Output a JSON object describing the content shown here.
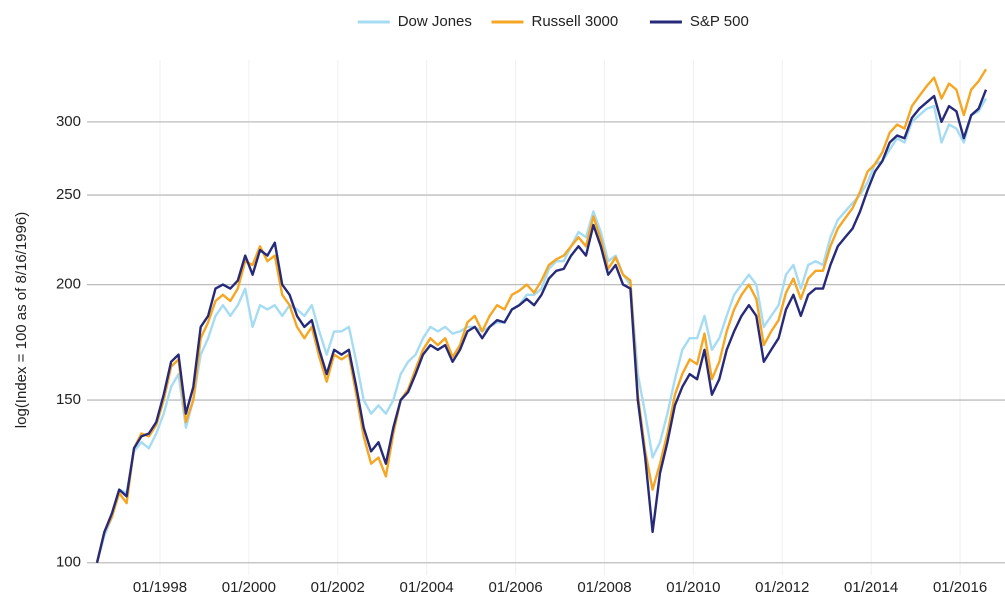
{
  "chart_data": {
    "type": "line",
    "y_label": "log(Index = 100 as of 8/16/1996)",
    "log_scale": true,
    "grid": true,
    "legend": "top",
    "xlim": [
      "1996-08",
      "2016-08"
    ],
    "xticks": [
      {
        "value": "1998-01",
        "label": "01/1998"
      },
      {
        "value": "2000-01",
        "label": "01/2000"
      },
      {
        "value": "2002-01",
        "label": "01/2002"
      },
      {
        "value": "2004-01",
        "label": "01/2004"
      },
      {
        "value": "2006-01",
        "label": "01/2006"
      },
      {
        "value": "2008-01",
        "label": "01/2008"
      },
      {
        "value": "2010-01",
        "label": "01/2010"
      },
      {
        "value": "2012-01",
        "label": "01/2012"
      },
      {
        "value": "2014-01",
        "label": "01/2014"
      },
      {
        "value": "2016-01",
        "label": "01/2016"
      }
    ],
    "ylim": [
      97,
      350
    ],
    "yticks": [
      100,
      150,
      200,
      250,
      300
    ],
    "x": [
      "1996-08",
      "1996-10",
      "1996-12",
      "1997-02",
      "1997-04",
      "1997-06",
      "1997-08",
      "1997-10",
      "1997-12",
      "1998-02",
      "1998-04",
      "1998-06",
      "1998-08",
      "1998-10",
      "1998-12",
      "1999-02",
      "1999-04",
      "1999-06",
      "1999-08",
      "1999-10",
      "1999-12",
      "2000-02",
      "2000-04",
      "2000-06",
      "2000-08",
      "2000-10",
      "2000-12",
      "2001-02",
      "2001-04",
      "2001-06",
      "2001-08",
      "2001-10",
      "2001-12",
      "2002-02",
      "2002-04",
      "2002-06",
      "2002-08",
      "2002-10",
      "2002-12",
      "2003-02",
      "2003-04",
      "2003-06",
      "2003-08",
      "2003-10",
      "2003-12",
      "2004-02",
      "2004-04",
      "2004-06",
      "2004-08",
      "2004-10",
      "2004-12",
      "2005-02",
      "2005-04",
      "2005-06",
      "2005-08",
      "2005-10",
      "2005-12",
      "2006-02",
      "2006-04",
      "2006-06",
      "2006-08",
      "2006-10",
      "2006-12",
      "2007-02",
      "2007-04",
      "2007-06",
      "2007-08",
      "2007-10",
      "2007-12",
      "2008-02",
      "2008-04",
      "2008-06",
      "2008-08",
      "2008-10",
      "2008-12",
      "2009-02",
      "2009-04",
      "2009-06",
      "2009-08",
      "2009-10",
      "2009-12",
      "2010-02",
      "2010-04",
      "2010-06",
      "2010-08",
      "2010-10",
      "2010-12",
      "2011-02",
      "2011-04",
      "2011-06",
      "2011-08",
      "2011-10",
      "2011-12",
      "2012-02",
      "2012-04",
      "2012-06",
      "2012-08",
      "2012-10",
      "2012-12",
      "2013-02",
      "2013-04",
      "2013-06",
      "2013-08",
      "2013-10",
      "2013-12",
      "2014-02",
      "2014-04",
      "2014-06",
      "2014-08",
      "2014-10",
      "2014-12",
      "2015-02",
      "2015-04",
      "2015-06",
      "2015-08",
      "2015-10",
      "2015-12",
      "2016-02",
      "2016-04",
      "2016-06",
      "2016-08"
    ],
    "series": [
      {
        "name": "Dow Jones",
        "color": "#a6dcf2",
        "values": [
          100,
          107,
          112,
          120,
          119,
          132,
          135,
          133,
          138,
          145,
          155,
          160,
          140,
          150,
          168,
          175,
          185,
          190,
          185,
          190,
          198,
          180,
          190,
          188,
          190,
          185,
          190,
          188,
          185,
          190,
          178,
          168,
          178,
          178,
          180,
          165,
          150,
          145,
          148,
          145,
          150,
          160,
          165,
          168,
          175,
          180,
          178,
          180,
          177,
          178,
          180,
          180,
          178,
          180,
          182,
          182,
          188,
          190,
          195,
          195,
          198,
          208,
          212,
          212,
          220,
          228,
          225,
          240,
          228,
          212,
          215,
          205,
          200,
          160,
          145,
          130,
          135,
          145,
          158,
          170,
          175,
          175,
          185,
          170,
          175,
          185,
          195,
          200,
          205,
          200,
          180,
          185,
          190,
          205,
          210,
          198,
          210,
          212,
          210,
          225,
          235,
          240,
          245,
          250,
          258,
          270,
          272,
          280,
          288,
          285,
          300,
          305,
          310,
          312,
          285,
          298,
          295,
          285,
          305,
          308,
          318
        ]
      },
      {
        "name": "Russell 3000",
        "color": "#f5a623",
        "values": [
          100,
          108,
          112,
          119,
          116,
          133,
          138,
          137,
          141,
          150,
          163,
          166,
          142,
          150,
          175,
          182,
          192,
          195,
          192,
          198,
          212,
          210,
          220,
          212,
          215,
          195,
          190,
          180,
          175,
          180,
          167,
          157,
          168,
          166,
          168,
          152,
          137,
          128,
          130,
          124,
          138,
          150,
          154,
          162,
          170,
          175,
          172,
          175,
          167,
          172,
          182,
          185,
          178,
          185,
          190,
          188,
          195,
          197,
          200,
          196,
          202,
          210,
          213,
          215,
          220,
          225,
          220,
          237,
          224,
          208,
          214,
          205,
          202,
          152,
          132,
          120,
          128,
          138,
          152,
          160,
          166,
          164,
          177,
          158,
          165,
          178,
          188,
          195,
          200,
          193,
          172,
          178,
          183,
          196,
          203,
          193,
          203,
          207,
          207,
          220,
          230,
          236,
          242,
          252,
          265,
          270,
          278,
          292,
          298,
          295,
          312,
          320,
          328,
          335,
          318,
          330,
          325,
          305,
          325,
          332,
          342
        ]
      },
      {
        "name": "S&P 500",
        "color": "#262a78",
        "values": [
          100,
          108,
          113,
          120,
          118,
          133,
          137,
          138,
          142,
          152,
          165,
          168,
          145,
          155,
          180,
          185,
          198,
          200,
          198,
          202,
          215,
          205,
          218,
          215,
          222,
          200,
          195,
          185,
          180,
          183,
          170,
          160,
          170,
          168,
          170,
          155,
          140,
          132,
          135,
          128,
          140,
          150,
          153,
          160,
          168,
          172,
          170,
          172,
          165,
          170,
          178,
          180,
          175,
          180,
          183,
          182,
          188,
          190,
          193,
          190,
          195,
          203,
          207,
          208,
          215,
          220,
          215,
          232,
          220,
          205,
          210,
          200,
          198,
          150,
          130,
          108,
          125,
          135,
          148,
          155,
          160,
          158,
          170,
          152,
          158,
          170,
          178,
          185,
          190,
          185,
          165,
          170,
          175,
          188,
          195,
          185,
          195,
          198,
          198,
          210,
          220,
          225,
          230,
          240,
          253,
          265,
          272,
          285,
          290,
          288,
          303,
          310,
          315,
          320,
          300,
          312,
          308,
          288,
          305,
          310,
          325
        ]
      }
    ]
  }
}
